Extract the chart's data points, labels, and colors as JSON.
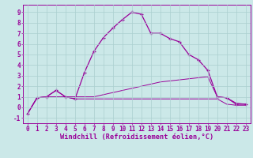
{
  "xlabel": "Windchill (Refroidissement éolien,°C)",
  "bg_color": "#cbe8e8",
  "line_color": "#990099",
  "grid_color": "#aacfcf",
  "xlim": [
    -0.5,
    23.5
  ],
  "ylim": [
    -1.5,
    9.7
  ],
  "xticks": [
    0,
    1,
    2,
    3,
    4,
    5,
    6,
    7,
    8,
    9,
    10,
    11,
    12,
    13,
    14,
    15,
    16,
    17,
    18,
    19,
    20,
    21,
    22,
    23
  ],
  "yticks": [
    -1,
    0,
    1,
    2,
    3,
    4,
    5,
    6,
    7,
    8,
    9
  ],
  "line1_x": [
    0,
    1,
    2,
    3,
    4,
    5,
    6,
    7,
    8,
    9,
    10,
    11,
    12,
    13,
    14,
    15,
    16,
    17,
    18,
    19,
    20,
    21,
    22,
    23
  ],
  "line1_y": [
    -0.6,
    0.9,
    1.0,
    1.6,
    1.0,
    0.8,
    3.3,
    5.3,
    6.6,
    7.5,
    8.3,
    9.0,
    8.8,
    7.0,
    7.0,
    6.5,
    6.2,
    5.0,
    4.5,
    3.5,
    1.0,
    0.9,
    0.3,
    0.3
  ],
  "line2_x": [
    0,
    1,
    2,
    3,
    4,
    5,
    6,
    7,
    8,
    9,
    10,
    11,
    12,
    13,
    14,
    15,
    16,
    17,
    18,
    19,
    20,
    21,
    22,
    23
  ],
  "line2_y": [
    -0.6,
    0.9,
    1.0,
    1.0,
    1.0,
    0.8,
    0.8,
    0.8,
    0.8,
    0.8,
    0.8,
    0.8,
    0.8,
    0.8,
    0.8,
    0.8,
    0.8,
    0.8,
    0.8,
    0.8,
    0.8,
    0.3,
    0.2,
    0.2
  ],
  "line3_x": [
    0,
    1,
    2,
    3,
    4,
    5,
    6,
    7,
    8,
    9,
    10,
    11,
    12,
    13,
    14,
    15,
    16,
    17,
    18,
    19,
    20,
    21,
    22,
    23
  ],
  "line3_y": [
    -0.6,
    0.9,
    1.0,
    1.6,
    1.0,
    1.0,
    1.0,
    1.0,
    1.2,
    1.4,
    1.6,
    1.8,
    2.0,
    2.2,
    2.4,
    2.5,
    2.6,
    2.7,
    2.8,
    2.9,
    1.0,
    0.9,
    0.4,
    0.3
  ],
  "tick_fontsize": 5.5,
  "xlabel_fontsize": 6.2
}
